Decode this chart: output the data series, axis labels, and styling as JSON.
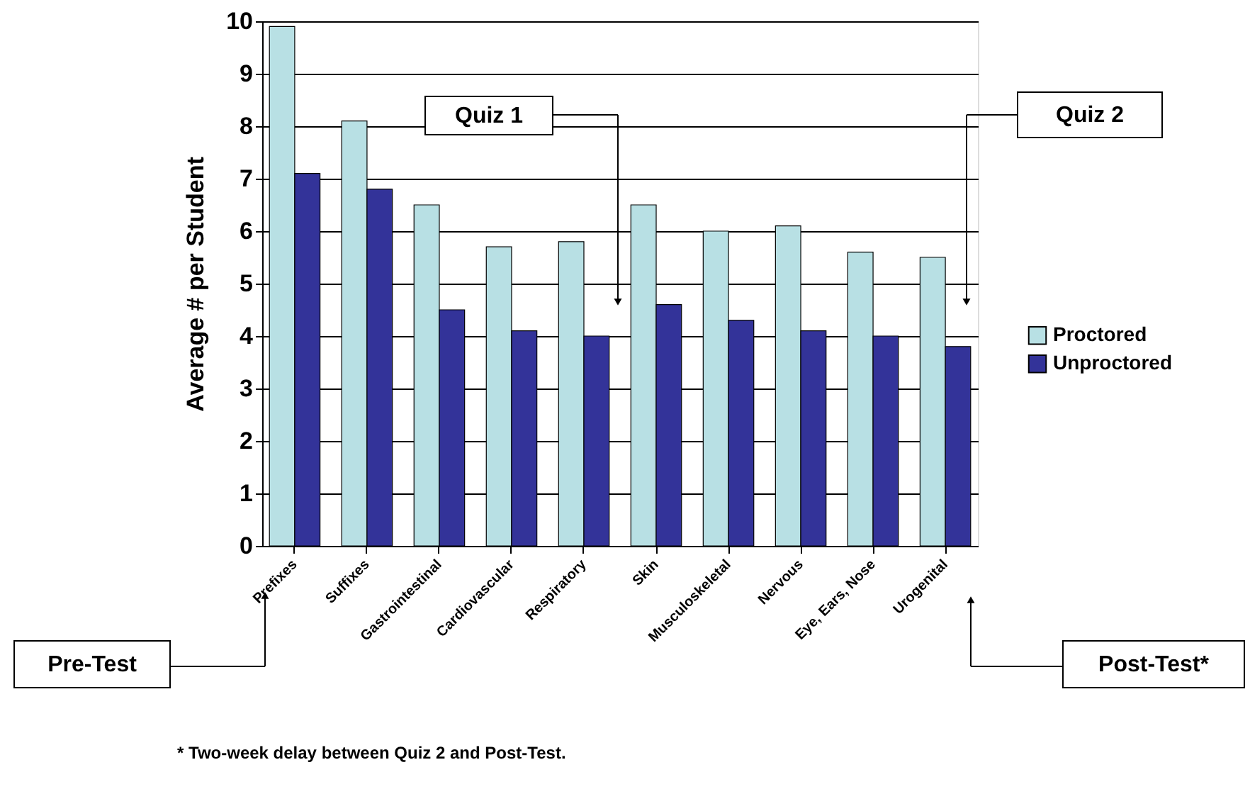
{
  "chart_data": {
    "type": "bar",
    "ylabel": "Average # per Student",
    "categories": [
      "Prefixes",
      "Suffixes",
      "Gastrointestinal",
      "Cardiovascular",
      "Respiratory",
      "Skin",
      "Musculoskeletal",
      "Nervous",
      "Eye, Ears, Nose",
      "Urogenital"
    ],
    "series": [
      {
        "name": "Proctored",
        "color": "#b8e0e4",
        "values": [
          9.9,
          8.1,
          6.5,
          5.7,
          5.8,
          6.5,
          6.0,
          6.1,
          5.6,
          5.5
        ]
      },
      {
        "name": "Unproctored",
        "color": "#333399",
        "values": [
          7.1,
          6.8,
          4.5,
          4.1,
          4.0,
          4.6,
          4.3,
          4.1,
          4.0,
          3.8
        ]
      }
    ],
    "ylim": [
      0,
      10
    ],
    "yticks": [
      0,
      1,
      2,
      3,
      4,
      5,
      6,
      7,
      8,
      9,
      10
    ],
    "grid": "y",
    "legend": "right",
    "annotations": [
      "Quiz 1",
      "Quiz 2",
      "Pre-Test",
      "Post-Test*",
      "* Two-week delay between Quiz 2 and Post-Test."
    ]
  }
}
